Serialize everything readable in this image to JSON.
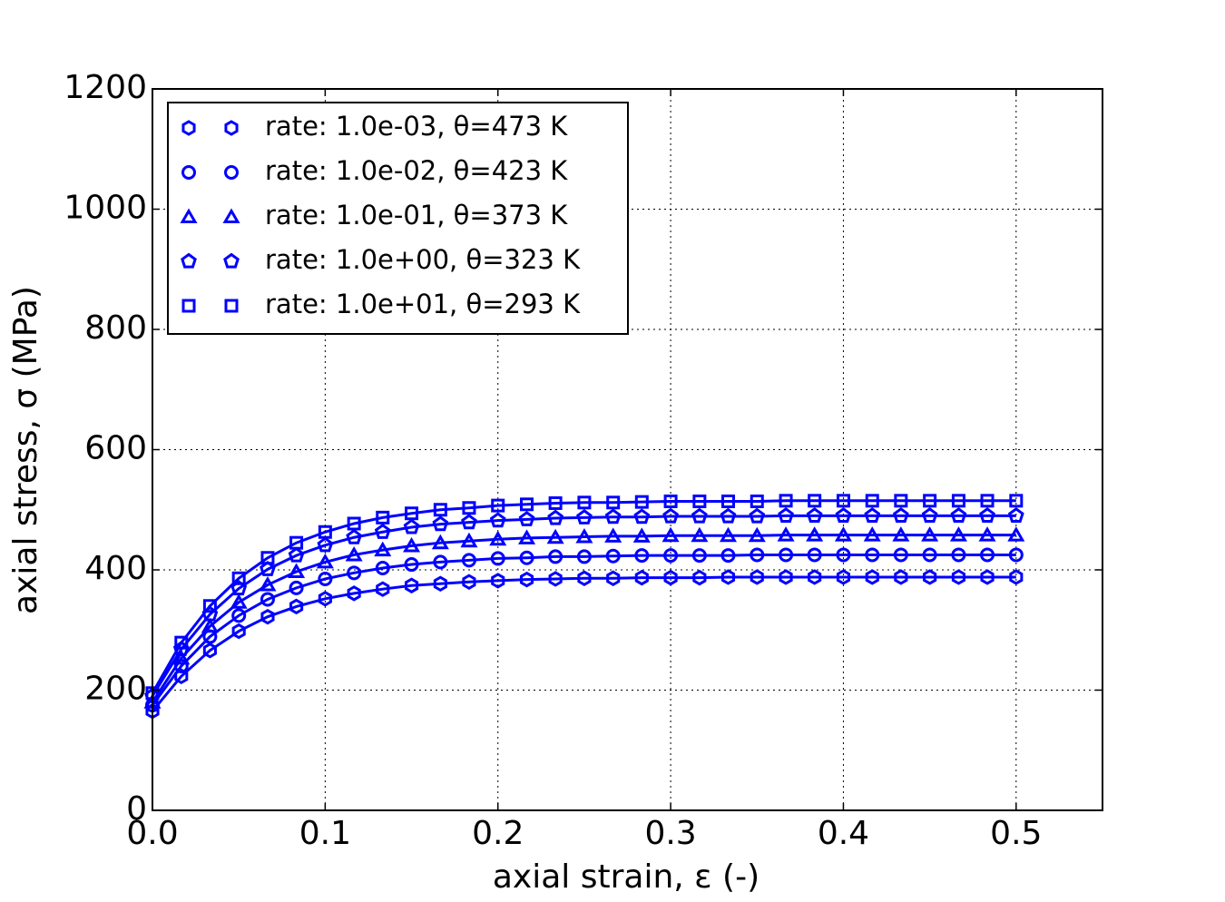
{
  "chart_data": {
    "type": "line",
    "x_label": "axial strain, ε (-)",
    "y_label": "axial stress, σ (MPa)",
    "xlim": [
      0,
      0.55
    ],
    "ylim": [
      0,
      1200
    ],
    "xticks": [
      {
        "value": 0,
        "label": "0.0"
      },
      0.1,
      0.2,
      0.3,
      0.4,
      0.5
    ],
    "yticks": [
      0,
      200,
      400,
      600,
      800,
      1000,
      1200
    ],
    "grid": true,
    "legend_loc": "upper left",
    "x": [
      0,
      0.0167,
      0.0333,
      0.05,
      0.0667,
      0.0833,
      0.1,
      0.1167,
      0.1333,
      0.15,
      0.1667,
      0.1833,
      0.2,
      0.2167,
      0.2333,
      0.25,
      0.2667,
      0.2833,
      0.3,
      0.3167,
      0.3333,
      0.35,
      0.3667,
      0.3833,
      0.4,
      0.4167,
      0.4333,
      0.45,
      0.4667,
      0.4833,
      0.5
    ],
    "series": [
      {
        "name": "rate: 1.0e-03, θ=473 K",
        "color": "#0000ff",
        "marker": "hexagon",
        "values": [
          165,
          223,
          266,
          298,
          322,
          339,
          352,
          361,
          368,
          374,
          377,
          380,
          382,
          384,
          385,
          386,
          386,
          387,
          387,
          387,
          388,
          388,
          388,
          388,
          388,
          388,
          388,
          388,
          388,
          388,
          388
        ]
      },
      {
        "name": "rate: 1.0e-02, θ=423 K",
        "color": "#0000ff",
        "marker": "circle",
        "values": [
          175,
          240,
          289,
          324,
          351,
          370,
          385,
          395,
          403,
          409,
          413,
          416,
          419,
          420,
          422,
          422,
          423,
          424,
          424,
          424,
          424,
          425,
          425,
          425,
          425,
          425,
          425,
          425,
          425,
          425,
          425
        ]
      },
      {
        "name": "rate: 1.0e-01, θ=373 K",
        "color": "#0000ff",
        "marker": "triangle",
        "values": [
          180,
          253,
          306,
          346,
          375,
          397,
          413,
          425,
          433,
          440,
          445,
          448,
          451,
          453,
          454,
          455,
          456,
          456,
          457,
          457,
          457,
          457,
          458,
          458,
          458,
          458,
          458,
          458,
          458,
          458,
          458
        ]
      },
      {
        "name": "rate: 1.0e+00, θ=323 K",
        "color": "#0000ff",
        "marker": "pentagon",
        "values": [
          190,
          268,
          326,
          369,
          401,
          424,
          441,
          454,
          463,
          471,
          476,
          479,
          482,
          484,
          486,
          487,
          488,
          488,
          489,
          489,
          489,
          489,
          490,
          490,
          490,
          490,
          490,
          490,
          490,
          490,
          490
        ]
      },
      {
        "name": "rate: 1.0e+01, θ=293 K",
        "color": "#0000ff",
        "marker": "square",
        "values": [
          195,
          279,
          340,
          386,
          420,
          445,
          463,
          477,
          487,
          494,
          500,
          503,
          507,
          509,
          511,
          512,
          512,
          513,
          514,
          514,
          514,
          514,
          515,
          515,
          515,
          515,
          515,
          515,
          515,
          515,
          515
        ]
      }
    ]
  }
}
